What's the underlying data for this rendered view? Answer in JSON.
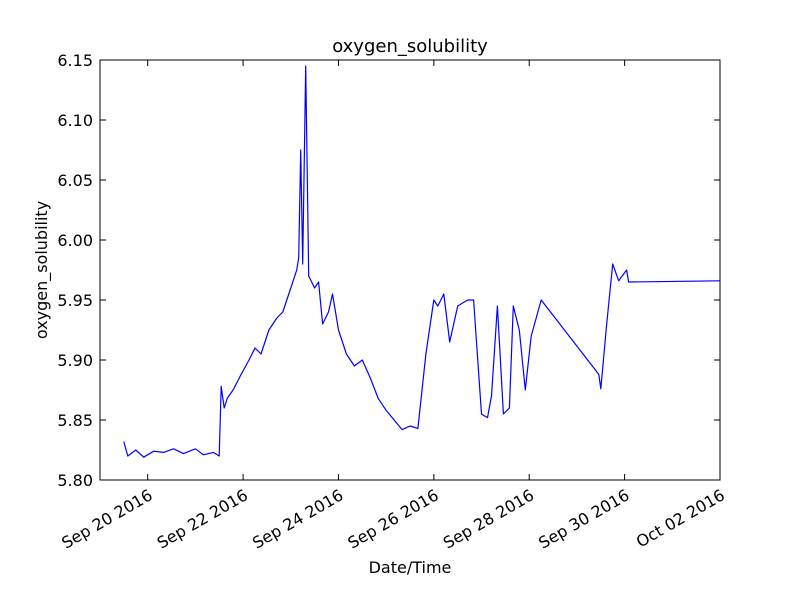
{
  "chart_data": {
    "type": "line",
    "title": "oxygen_solubility",
    "xlabel": "Date/Time",
    "ylabel": "oxygen_solubility",
    "x_axis_type": "date",
    "xlim": [
      "2016-09-19T00:00",
      "2016-10-02T00:00"
    ],
    "ylim": [
      5.8,
      6.15
    ],
    "x_tick_labels": [
      "Sep 20 2016",
      "Sep 22 2016",
      "Sep 24 2016",
      "Sep 26 2016",
      "Sep 28 2016",
      "Sep 30 2016",
      "Oct 02 2016"
    ],
    "x_ticks": [
      "2016-09-20T00:00",
      "2016-09-22T00:00",
      "2016-09-24T00:00",
      "2016-09-26T00:00",
      "2016-09-28T00:00",
      "2016-09-30T00:00",
      "2016-10-02T00:00"
    ],
    "y_ticks": [
      5.8,
      5.85,
      5.9,
      5.95,
      6.0,
      6.05,
      6.1,
      6.15
    ],
    "y_tick_labels": [
      "5.80",
      "5.85",
      "5.90",
      "5.95",
      "6.00",
      "6.05",
      "6.10",
      "6.15"
    ],
    "grid": false,
    "legend": "none",
    "series": [
      {
        "color": "#0000ff",
        "x": [
          "2016-09-19T12:00",
          "2016-09-19T14:00",
          "2016-09-19T18:00",
          "2016-09-19T22:00",
          "2016-09-20T03:00",
          "2016-09-20T08:00",
          "2016-09-20T13:00",
          "2016-09-20T18:00",
          "2016-09-21T00:00",
          "2016-09-21T04:00",
          "2016-09-21T09:00",
          "2016-09-21T12:00",
          "2016-09-21T13:00",
          "2016-09-21T14:30",
          "2016-09-21T16:00",
          "2016-09-21T19:00",
          "2016-09-21T23:00",
          "2016-09-22T03:00",
          "2016-09-22T06:00",
          "2016-09-22T09:00",
          "2016-09-22T13:00",
          "2016-09-22T17:00",
          "2016-09-22T20:00",
          "2016-09-22T23:00",
          "2016-09-23T01:00",
          "2016-09-23T03:00",
          "2016-09-23T04:00",
          "2016-09-23T05:00",
          "2016-09-23T06:00",
          "2016-09-23T07:30",
          "2016-09-23T09:00",
          "2016-09-23T12:00",
          "2016-09-23T14:00",
          "2016-09-23T16:00",
          "2016-09-23T19:00",
          "2016-09-23T21:00",
          "2016-09-24T00:00",
          "2016-09-24T04:00",
          "2016-09-24T08:00",
          "2016-09-24T12:00",
          "2016-09-24T16:00",
          "2016-09-24T20:00",
          "2016-09-25T00:00",
          "2016-09-25T04:00",
          "2016-09-25T08:00",
          "2016-09-25T12:00",
          "2016-09-25T16:00",
          "2016-09-25T20:00",
          "2016-09-26T00:00",
          "2016-09-26T02:00",
          "2016-09-26T05:00",
          "2016-09-26T08:00",
          "2016-09-26T12:00",
          "2016-09-26T17:00",
          "2016-09-26T20:00",
          "2016-09-27T00:00",
          "2016-09-27T03:00",
          "2016-09-27T05:00",
          "2016-09-27T08:00",
          "2016-09-27T11:00",
          "2016-09-27T14:00",
          "2016-09-27T16:00",
          "2016-09-27T19:00",
          "2016-09-27T22:00",
          "2016-09-28T01:00",
          "2016-09-28T06:00",
          "2016-09-29T11:00",
          "2016-09-29T12:00",
          "2016-09-29T15:00",
          "2016-09-29T18:00",
          "2016-09-29T21:00",
          "2016-09-30T01:00",
          "2016-09-30T02:00",
          "2016-10-02T00:00"
        ],
        "y": [
          5.832,
          5.82,
          5.825,
          5.819,
          5.824,
          5.823,
          5.826,
          5.822,
          5.826,
          5.821,
          5.823,
          5.82,
          5.878,
          5.86,
          5.868,
          5.875,
          5.888,
          5.9,
          5.91,
          5.905,
          5.925,
          5.935,
          5.94,
          5.955,
          5.965,
          5.975,
          5.985,
          6.075,
          5.98,
          6.145,
          5.97,
          5.96,
          5.965,
          5.93,
          5.94,
          5.955,
          5.925,
          5.905,
          5.895,
          5.9,
          5.885,
          5.868,
          5.858,
          5.85,
          5.842,
          5.845,
          5.843,
          5.905,
          5.95,
          5.945,
          5.955,
          5.915,
          5.945,
          5.95,
          5.95,
          5.855,
          5.852,
          5.87,
          5.945,
          5.855,
          5.86,
          5.945,
          5.925,
          5.875,
          5.92,
          5.95,
          5.888,
          5.876,
          5.93,
          5.98,
          5.966,
          5.975,
          5.965,
          5.966
        ]
      }
    ]
  }
}
